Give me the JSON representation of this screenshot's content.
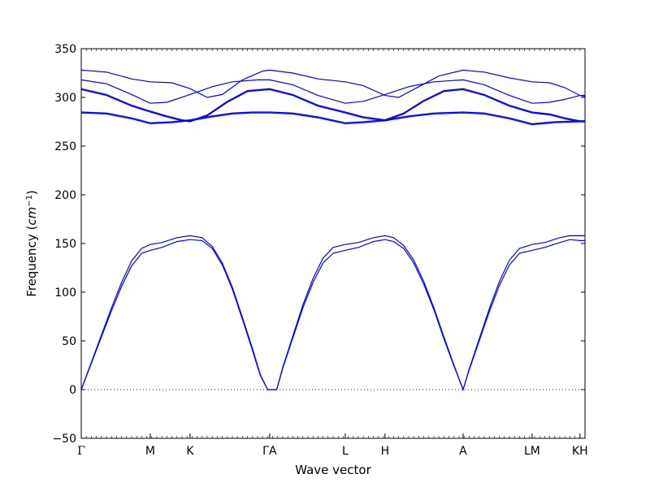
{
  "chart_data": {
    "type": "line",
    "xlabel": "Wave vector",
    "ylabel": "Frequency",
    "ylabel_unit_base": "cm",
    "ylabel_unit_exp": "−1",
    "ylim": [
      -50,
      350
    ],
    "xlim": [
      0,
      1
    ],
    "y_ticks": [
      "350",
      "300",
      "250",
      "200",
      "150",
      "100",
      "50",
      "0",
      "−50"
    ],
    "y_tick_values": [
      350,
      300,
      250,
      200,
      150,
      100,
      50,
      0,
      -50
    ],
    "x_ticks": [
      {
        "label": "Γ",
        "x": 0.0
      },
      {
        "label": "M",
        "x": 0.137
      },
      {
        "label": "K",
        "x": 0.216
      },
      {
        "label": "ΓA",
        "x": 0.374
      },
      {
        "label": "L",
        "x": 0.524
      },
      {
        "label": "H",
        "x": 0.603
      },
      {
        "label": "A",
        "x": 0.758
      },
      {
        "label": "LM",
        "x": 0.895
      },
      {
        "label": "KH",
        "x": 0.99
      }
    ],
    "grid": false,
    "line_color": "#0000ff",
    "zero_line": {
      "y": 0,
      "style": "dotted",
      "color": "#0000ff"
    },
    "series": [
      {
        "values": [
          [
            0,
            0
          ],
          [
            0.02,
            27
          ],
          [
            0.04,
            54
          ],
          [
            0.06,
            81
          ],
          [
            0.08,
            106
          ],
          [
            0.1,
            127
          ],
          [
            0.12,
            140
          ],
          [
            0.137,
            143
          ],
          [
            0.16,
            146
          ],
          [
            0.19,
            152
          ],
          [
            0.216,
            154
          ],
          [
            0.24,
            153
          ],
          [
            0.26,
            145
          ],
          [
            0.28,
            128
          ],
          [
            0.3,
            103
          ],
          [
            0.32,
            72
          ],
          [
            0.34,
            40
          ],
          [
            0.355,
            15
          ],
          [
            0.37,
            0
          ],
          [
            0.374,
            0
          ],
          [
            0.388,
            0
          ],
          [
            0.4,
            22
          ],
          [
            0.42,
            53
          ],
          [
            0.44,
            84
          ],
          [
            0.46,
            110
          ],
          [
            0.48,
            130
          ],
          [
            0.5,
            140
          ],
          [
            0.524,
            143
          ],
          [
            0.55,
            146
          ],
          [
            0.58,
            152
          ],
          [
            0.603,
            154
          ],
          [
            0.62,
            152
          ],
          [
            0.64,
            145
          ],
          [
            0.66,
            130
          ],
          [
            0.68,
            108
          ],
          [
            0.7,
            82
          ],
          [
            0.72,
            52
          ],
          [
            0.74,
            24
          ],
          [
            0.758,
            0
          ],
          [
            0.77,
            20
          ],
          [
            0.79,
            50
          ],
          [
            0.81,
            80
          ],
          [
            0.83,
            107
          ],
          [
            0.85,
            128
          ],
          [
            0.87,
            140
          ],
          [
            0.895,
            143
          ],
          [
            0.92,
            146
          ],
          [
            0.95,
            151
          ],
          [
            0.97,
            154
          ],
          [
            0.99,
            153
          ],
          [
            1.0,
            153
          ]
        ]
      },
      {
        "values": [
          [
            0,
            0
          ],
          [
            0.02,
            28
          ],
          [
            0.04,
            56
          ],
          [
            0.06,
            84
          ],
          [
            0.08,
            110
          ],
          [
            0.1,
            132
          ],
          [
            0.12,
            145
          ],
          [
            0.137,
            149
          ],
          [
            0.16,
            151
          ],
          [
            0.19,
            156
          ],
          [
            0.216,
            158
          ],
          [
            0.24,
            156
          ],
          [
            0.26,
            147
          ],
          [
            0.28,
            130
          ],
          [
            0.3,
            105
          ],
          [
            0.32,
            74
          ],
          [
            0.34,
            42
          ],
          [
            0.355,
            16
          ],
          [
            0.37,
            0
          ],
          [
            0.374,
            0
          ],
          [
            0.388,
            0
          ],
          [
            0.4,
            23
          ],
          [
            0.42,
            55
          ],
          [
            0.44,
            87
          ],
          [
            0.46,
            114
          ],
          [
            0.48,
            135
          ],
          [
            0.5,
            146
          ],
          [
            0.524,
            149
          ],
          [
            0.55,
            151
          ],
          [
            0.58,
            156
          ],
          [
            0.603,
            158
          ],
          [
            0.62,
            156
          ],
          [
            0.64,
            148
          ],
          [
            0.66,
            133
          ],
          [
            0.68,
            111
          ],
          [
            0.7,
            84
          ],
          [
            0.72,
            54
          ],
          [
            0.74,
            25
          ],
          [
            0.758,
            0
          ],
          [
            0.77,
            21
          ],
          [
            0.79,
            52
          ],
          [
            0.81,
            83
          ],
          [
            0.83,
            111
          ],
          [
            0.85,
            133
          ],
          [
            0.87,
            145
          ],
          [
            0.895,
            149
          ],
          [
            0.92,
            151
          ],
          [
            0.95,
            156
          ],
          [
            0.97,
            158
          ],
          [
            0.99,
            158
          ],
          [
            1.0,
            158
          ]
        ]
      },
      {
        "values": [
          [
            0,
            285
          ],
          [
            0.05,
            284
          ],
          [
            0.1,
            279
          ],
          [
            0.137,
            274
          ],
          [
            0.18,
            275
          ],
          [
            0.216,
            277
          ],
          [
            0.26,
            281
          ],
          [
            0.3,
            284
          ],
          [
            0.34,
            285
          ],
          [
            0.374,
            285
          ],
          [
            0.42,
            284
          ],
          [
            0.47,
            280
          ],
          [
            0.524,
            274
          ],
          [
            0.56,
            275
          ],
          [
            0.603,
            277
          ],
          [
            0.65,
            281
          ],
          [
            0.7,
            284
          ],
          [
            0.758,
            285
          ],
          [
            0.8,
            284
          ],
          [
            0.85,
            279
          ],
          [
            0.895,
            273
          ],
          [
            0.94,
            275
          ],
          [
            0.99,
            276
          ],
          [
            1.0,
            276
          ]
        ]
      },
      {
        "values": [
          [
            0,
            284
          ],
          [
            0.05,
            283
          ],
          [
            0.1,
            278
          ],
          [
            0.137,
            273
          ],
          [
            0.18,
            274
          ],
          [
            0.216,
            276
          ],
          [
            0.26,
            280
          ],
          [
            0.3,
            283
          ],
          [
            0.34,
            284
          ],
          [
            0.374,
            284
          ],
          [
            0.42,
            283
          ],
          [
            0.47,
            279
          ],
          [
            0.524,
            273
          ],
          [
            0.56,
            274
          ],
          [
            0.603,
            276
          ],
          [
            0.65,
            280
          ],
          [
            0.7,
            283
          ],
          [
            0.758,
            284
          ],
          [
            0.8,
            283
          ],
          [
            0.85,
            278
          ],
          [
            0.895,
            272
          ],
          [
            0.94,
            274
          ],
          [
            0.99,
            275
          ],
          [
            1.0,
            275
          ]
        ]
      },
      {
        "values": [
          [
            0,
            309
          ],
          [
            0.05,
            303
          ],
          [
            0.1,
            292
          ],
          [
            0.137,
            286
          ],
          [
            0.17,
            281
          ],
          [
            0.2,
            277
          ],
          [
            0.216,
            276
          ],
          [
            0.25,
            282
          ],
          [
            0.29,
            296
          ],
          [
            0.33,
            307
          ],
          [
            0.374,
            309
          ],
          [
            0.42,
            303
          ],
          [
            0.47,
            292
          ],
          [
            0.524,
            285
          ],
          [
            0.56,
            280
          ],
          [
            0.603,
            277
          ],
          [
            0.64,
            284
          ],
          [
            0.68,
            297
          ],
          [
            0.72,
            307
          ],
          [
            0.758,
            309
          ],
          [
            0.8,
            303
          ],
          [
            0.85,
            292
          ],
          [
            0.895,
            285
          ],
          [
            0.93,
            283
          ],
          [
            0.96,
            279
          ],
          [
            0.99,
            276
          ],
          [
            1.0,
            276
          ]
        ]
      },
      {
        "values": [
          [
            0,
            308
          ],
          [
            0.05,
            302
          ],
          [
            0.1,
            291
          ],
          [
            0.137,
            285
          ],
          [
            0.17,
            280
          ],
          [
            0.2,
            276
          ],
          [
            0.216,
            275
          ],
          [
            0.25,
            281
          ],
          [
            0.29,
            295
          ],
          [
            0.33,
            306
          ],
          [
            0.374,
            308
          ],
          [
            0.42,
            302
          ],
          [
            0.47,
            291
          ],
          [
            0.524,
            284
          ],
          [
            0.56,
            279
          ],
          [
            0.603,
            276
          ],
          [
            0.64,
            283
          ],
          [
            0.68,
            296
          ],
          [
            0.72,
            306
          ],
          [
            0.758,
            308
          ],
          [
            0.8,
            302
          ],
          [
            0.85,
            291
          ],
          [
            0.895,
            284
          ],
          [
            0.93,
            282
          ],
          [
            0.96,
            278
          ],
          [
            0.99,
            275
          ],
          [
            1.0,
            275
          ]
        ]
      },
      {
        "values": [
          [
            0,
            318
          ],
          [
            0.05,
            314
          ],
          [
            0.1,
            303
          ],
          [
            0.137,
            294
          ],
          [
            0.17,
            295
          ],
          [
            0.216,
            303
          ],
          [
            0.26,
            311
          ],
          [
            0.3,
            316
          ],
          [
            0.35,
            318
          ],
          [
            0.374,
            318
          ],
          [
            0.42,
            313
          ],
          [
            0.47,
            302
          ],
          [
            0.524,
            294
          ],
          [
            0.56,
            296
          ],
          [
            0.603,
            303
          ],
          [
            0.65,
            311
          ],
          [
            0.7,
            316
          ],
          [
            0.758,
            318
          ],
          [
            0.8,
            313
          ],
          [
            0.85,
            302
          ],
          [
            0.895,
            294
          ],
          [
            0.93,
            295
          ],
          [
            0.96,
            298
          ],
          [
            0.99,
            302
          ],
          [
            1.0,
            302
          ]
        ]
      },
      {
        "values": [
          [
            0,
            328
          ],
          [
            0.05,
            326
          ],
          [
            0.1,
            319
          ],
          [
            0.137,
            316
          ],
          [
            0.18,
            315
          ],
          [
            0.216,
            309
          ],
          [
            0.25,
            300
          ],
          [
            0.28,
            303
          ],
          [
            0.32,
            318
          ],
          [
            0.36,
            327
          ],
          [
            0.374,
            328
          ],
          [
            0.42,
            325
          ],
          [
            0.47,
            319
          ],
          [
            0.524,
            316
          ],
          [
            0.56,
            312
          ],
          [
            0.603,
            302
          ],
          [
            0.63,
            300
          ],
          [
            0.67,
            311
          ],
          [
            0.71,
            322
          ],
          [
            0.758,
            328
          ],
          [
            0.8,
            326
          ],
          [
            0.85,
            320
          ],
          [
            0.895,
            316
          ],
          [
            0.93,
            315
          ],
          [
            0.96,
            310
          ],
          [
            0.99,
            302
          ],
          [
            1.0,
            301
          ]
        ]
      }
    ]
  }
}
